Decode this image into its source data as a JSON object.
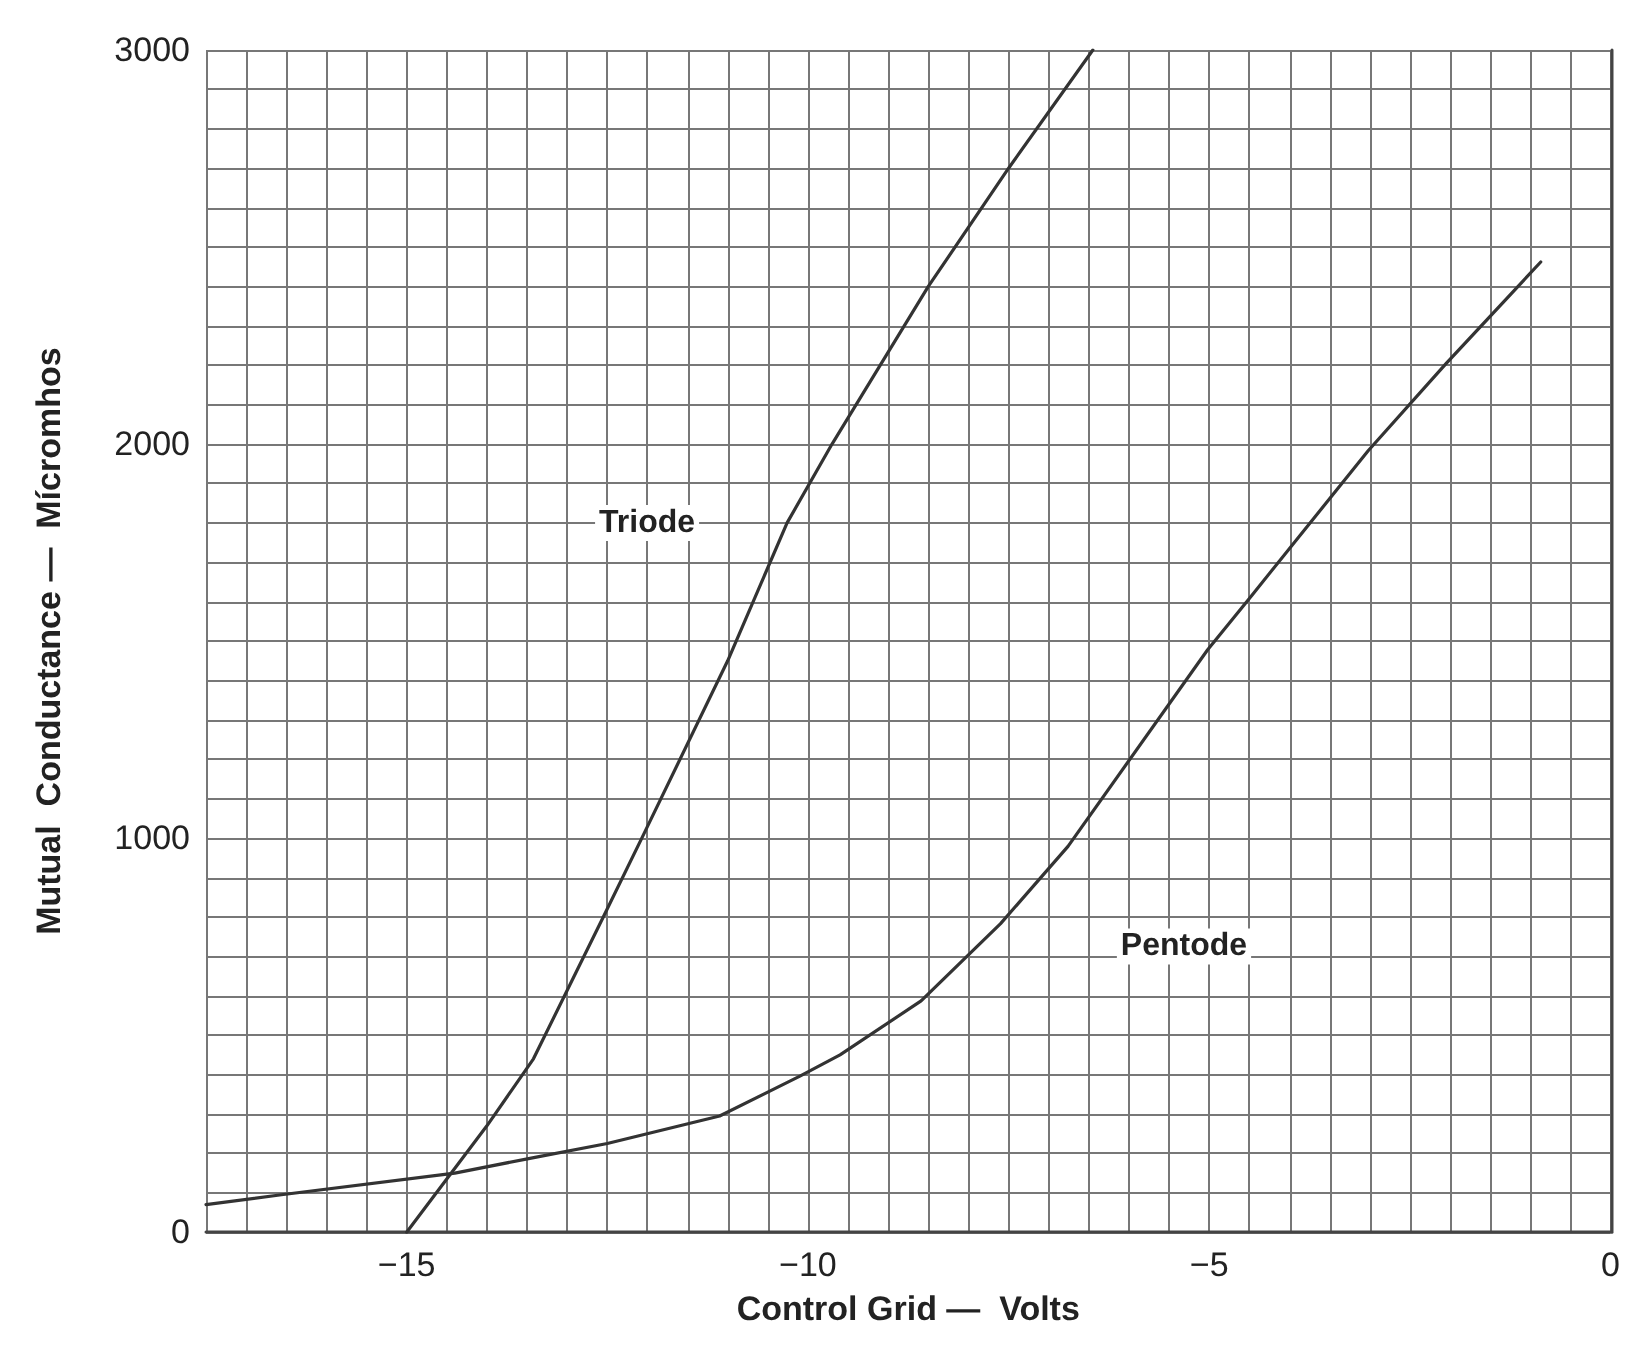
{
  "chart_data": {
    "type": "line",
    "xlabel": "Control Grid —  Volts",
    "ylabel": "Mutual  Conductance —  Mícromhos",
    "series": [
      {
        "name": "Triode",
        "color": "#333333",
        "x": [
          -15,
          -14,
          -13.42,
          -12.55,
          -12.07,
          -11,
          -10.26,
          -9.7,
          -8.5,
          -7.5,
          -6.45
        ],
        "values": [
          0,
          270,
          440,
          800,
          1000,
          1450,
          1800,
          2000,
          2400,
          2700,
          3000
        ]
      },
      {
        "name": "Pentode",
        "color": "#333333",
        "x": [
          -17.5,
          -16.56,
          -14.4,
          -13.4,
          -12.5,
          -11.1,
          -10.1,
          -9.6,
          -8.59,
          -7.6,
          -6.76,
          -5.02,
          -4.47,
          -3.02,
          -2.05,
          -0.87
        ],
        "values": [
          70,
          95,
          150,
          190,
          225,
          295,
          396,
          450,
          587,
          783,
          979,
          1478,
          1616,
          1983,
          2204,
          2462
        ]
      }
    ],
    "xlim": [
      -17.5,
      0
    ],
    "xticks": [
      {
        "value": -15,
        "label": "−15"
      },
      {
        "value": -10,
        "label": "−10"
      },
      {
        "value": -5,
        "label": "−5"
      },
      0
    ],
    "ylim": [
      0,
      3000
    ],
    "yticks": [
      0,
      1000,
      2000,
      3000
    ],
    "grid": true,
    "marker": "none",
    "line_style": "solid",
    "legend": false
  }
}
